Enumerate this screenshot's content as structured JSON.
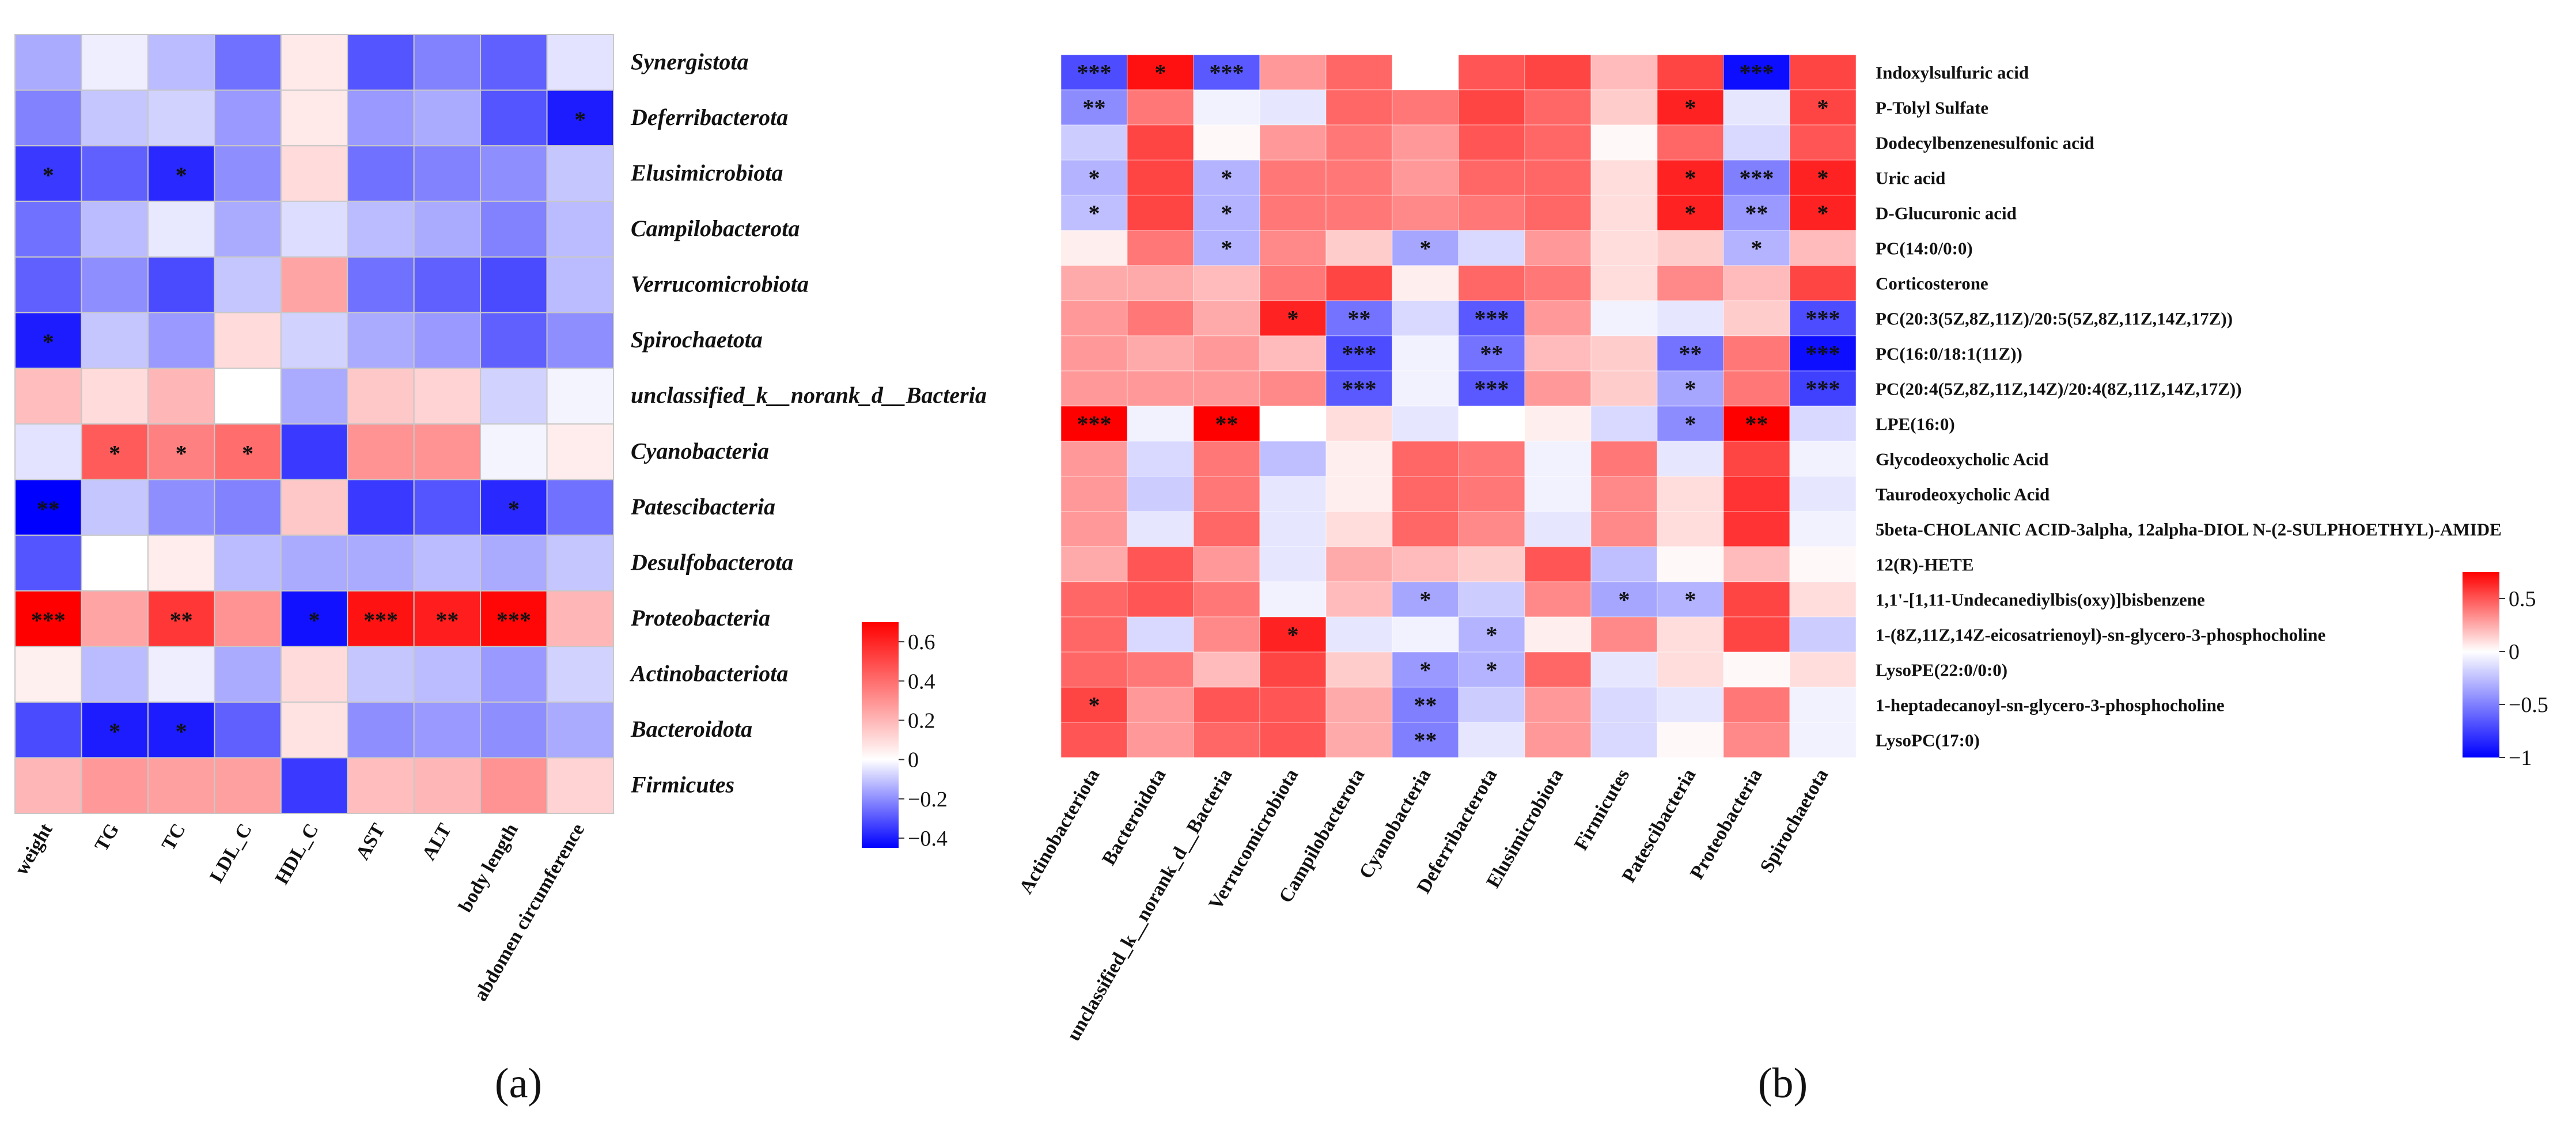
{
  "panel_labels": [
    "(a)",
    "(b)"
  ],
  "chart_data": [
    {
      "type": "heatmap",
      "panel": "a",
      "rows": [
        "Synergistota",
        "Deferribacterota",
        "Elusimicrobiota",
        "Campilobacterota",
        "Verrucomicrobiota",
        "Spirochaetota",
        "unclassified_k__norank_d__Bacteria",
        "Cyanobacteria",
        "Patescibacteria",
        "Desulfobacterota",
        "Proteobacteria",
        "Actinobacteriota",
        "Bacteroidota",
        "Firmicutes"
      ],
      "columns": [
        "weight",
        "TG",
        "TC",
        "LDL_C",
        "HDL_C",
        "AST",
        "ALT",
        "body length",
        "abdomen circumference"
      ],
      "values": [
        [
          -0.15,
          -0.03,
          -0.12,
          -0.25,
          0.06,
          -0.3,
          -0.22,
          -0.28,
          -0.05
        ],
        [
          -0.22,
          -0.1,
          -0.08,
          -0.18,
          0.06,
          -0.18,
          -0.15,
          -0.3,
          -0.4
        ],
        [
          -0.35,
          -0.28,
          -0.38,
          -0.2,
          0.1,
          -0.25,
          -0.22,
          -0.2,
          -0.1
        ],
        [
          -0.25,
          -0.12,
          -0.04,
          -0.15,
          -0.06,
          -0.12,
          -0.15,
          -0.22,
          -0.12
        ],
        [
          -0.28,
          -0.2,
          -0.32,
          -0.1,
          0.25,
          -0.25,
          -0.28,
          -0.32,
          -0.12
        ],
        [
          -0.4,
          -0.1,
          -0.18,
          0.1,
          -0.08,
          -0.15,
          -0.18,
          -0.28,
          -0.2
        ],
        [
          0.18,
          0.1,
          0.2,
          0.0,
          -0.15,
          0.15,
          0.12,
          -0.08,
          -0.02
        ],
        [
          -0.05,
          0.45,
          0.35,
          0.4,
          -0.35,
          0.3,
          0.3,
          -0.02,
          0.05
        ],
        [
          -0.45,
          -0.1,
          -0.2,
          -0.22,
          0.15,
          -0.35,
          -0.3,
          -0.38,
          -0.25
        ],
        [
          -0.3,
          0.0,
          0.05,
          -0.12,
          -0.15,
          -0.15,
          -0.12,
          -0.15,
          -0.1
        ],
        [
          0.7,
          0.25,
          0.55,
          0.3,
          -0.42,
          0.65,
          0.62,
          0.68,
          0.2
        ],
        [
          0.04,
          -0.12,
          -0.03,
          -0.15,
          0.1,
          -0.1,
          -0.12,
          -0.18,
          -0.08
        ],
        [
          -0.32,
          -0.4,
          -0.4,
          -0.28,
          0.08,
          -0.2,
          -0.18,
          -0.2,
          -0.15
        ],
        [
          0.2,
          0.28,
          0.26,
          0.26,
          -0.35,
          0.18,
          0.2,
          0.3,
          0.12
        ]
      ],
      "significance": [
        [
          "",
          "",
          "",
          "",
          "",
          "",
          "",
          "",
          ""
        ],
        [
          "",
          "",
          "",
          "",
          "",
          "",
          "",
          "",
          "*"
        ],
        [
          "*",
          "",
          "*",
          "",
          "",
          "",
          "",
          "",
          ""
        ],
        [
          "",
          "",
          "",
          "",
          "",
          "",
          "",
          "",
          ""
        ],
        [
          "",
          "",
          "",
          "",
          "",
          "",
          "",
          "",
          ""
        ],
        [
          "*",
          "",
          "",
          "",
          "",
          "",
          "",
          "",
          ""
        ],
        [
          "",
          "",
          "",
          "",
          "",
          "",
          "",
          "",
          ""
        ],
        [
          "",
          "*",
          "*",
          "*",
          "",
          "",
          "",
          "",
          ""
        ],
        [
          "**",
          "",
          "",
          "",
          "",
          "",
          "",
          "*",
          ""
        ],
        [
          "",
          "",
          "",
          "",
          "",
          "",
          "",
          "",
          ""
        ],
        [
          "***",
          "",
          "**",
          "",
          "*",
          "***",
          "**",
          "***",
          ""
        ],
        [
          "",
          "",
          "",
          "",
          "",
          "",
          "",
          "",
          ""
        ],
        [
          "",
          "*",
          "*",
          "",
          "",
          "",
          "",
          "",
          ""
        ],
        [
          "",
          "",
          "",
          "",
          "",
          "",
          "",
          "",
          ""
        ]
      ],
      "colorbar": {
        "range": [
          -0.45,
          0.7
        ],
        "ticks": [
          0.6,
          0.4,
          0.2,
          0,
          -0.2,
          -0.4
        ],
        "tick_labels": [
          "0.6",
          "0.4",
          "0.2",
          "0",
          "−0.2",
          "−0.4"
        ]
      },
      "colors": {
        "low": "#0000ff",
        "mid": "#ffffff",
        "high": "#ff0000",
        "grid": "#c8c8c8"
      }
    },
    {
      "type": "heatmap",
      "panel": "b",
      "rows": [
        "Indoxylsulfuric acid",
        "P-Tolyl Sulfate",
        "Dodecylbenzenesulfonic acid",
        "Uric acid",
        "D-Glucuronic acid",
        "PC(14:0/0:0)",
        "Corticosterone",
        "PC(20:3(5Z,8Z,11Z)/20:5(5Z,8Z,11Z,14Z,17Z))",
        "PC(16:0/18:1(11Z))",
        "PC(20:4(5Z,8Z,11Z,14Z)/20:4(8Z,11Z,14Z,17Z))",
        "LPE(16:0)",
        "Glycodeoxycholic Acid",
        "Taurodeoxycholic Acid",
        "5beta-CHOLANIC ACID-3alpha, 12alpha-DIOL N-(2-SULPHOETHYL)-AMIDE",
        "12(R)-HETE",
        "1,1'-[1,11-Undecanediylbis(oxy)]bisbenzene",
        "1-(8Z,11Z,14Z-eicosatrienoyl)-sn-glycero-3-phosphocholine",
        "LysoPE(22:0/0:0)",
        "1-heptadecanoyl-sn-glycero-3-phosphocholine",
        "LysoPC(17:0)"
      ],
      "columns": [
        "Actinobacteriota",
        "Bacteroidota",
        "unclassified_k__norank_d__Bacteria",
        "Verrucomicrobiota",
        "Campilobacterota",
        "Cyanobacteria",
        "Deferribacterota",
        "Elusimicrobiota",
        "Firmicutes",
        "Patescibacteria",
        "Proteobacteria",
        "Spirochaetota"
      ],
      "values": [
        [
          -0.7,
          0.7,
          -0.65,
          0.3,
          0.45,
          0.0,
          0.5,
          0.55,
          0.2,
          0.55,
          -0.95,
          0.55
        ],
        [
          -0.45,
          0.4,
          -0.05,
          -0.1,
          0.45,
          0.4,
          0.55,
          0.45,
          0.15,
          0.65,
          -0.1,
          0.55
        ],
        [
          -0.2,
          0.55,
          0.02,
          0.3,
          0.4,
          0.3,
          0.5,
          0.45,
          0.02,
          0.45,
          -0.15,
          0.5
        ],
        [
          -0.3,
          0.55,
          -0.3,
          0.4,
          0.4,
          0.3,
          0.45,
          0.45,
          0.1,
          0.65,
          -0.5,
          0.65
        ],
        [
          -0.25,
          0.55,
          -0.3,
          0.4,
          0.4,
          0.35,
          0.4,
          0.45,
          0.1,
          0.65,
          -0.4,
          0.65
        ],
        [
          0.05,
          0.4,
          -0.3,
          0.35,
          0.15,
          -0.35,
          -0.15,
          0.3,
          0.1,
          0.15,
          -0.3,
          0.2
        ],
        [
          0.25,
          0.25,
          0.2,
          0.4,
          0.55,
          0.05,
          0.45,
          0.4,
          0.1,
          0.35,
          0.2,
          0.55
        ],
        [
          0.3,
          0.4,
          0.25,
          0.65,
          -0.55,
          -0.15,
          -0.65,
          0.3,
          -0.05,
          -0.1,
          0.15,
          -0.7
        ],
        [
          0.3,
          0.25,
          0.3,
          0.2,
          -0.7,
          -0.05,
          -0.55,
          0.2,
          0.15,
          -0.55,
          0.4,
          -0.95
        ],
        [
          0.3,
          0.3,
          0.3,
          0.35,
          -0.65,
          -0.05,
          -0.65,
          0.3,
          0.15,
          -0.35,
          0.4,
          -0.75
        ],
        [
          0.85,
          -0.05,
          0.8,
          0.0,
          0.1,
          -0.1,
          0.0,
          0.05,
          -0.15,
          -0.45,
          0.8,
          -0.15
        ],
        [
          0.3,
          -0.15,
          0.4,
          -0.25,
          0.05,
          0.45,
          0.4,
          -0.05,
          0.4,
          -0.1,
          0.55,
          -0.05
        ],
        [
          0.3,
          -0.2,
          0.4,
          -0.1,
          0.05,
          0.45,
          0.4,
          -0.05,
          0.35,
          0.1,
          0.6,
          -0.1
        ],
        [
          0.3,
          -0.1,
          0.45,
          -0.1,
          0.1,
          0.45,
          0.35,
          -0.1,
          0.35,
          0.1,
          0.6,
          -0.05
        ],
        [
          0.25,
          0.5,
          0.3,
          -0.1,
          0.25,
          0.2,
          0.15,
          0.5,
          -0.25,
          0.02,
          0.2,
          0.02
        ],
        [
          0.45,
          0.5,
          0.4,
          -0.05,
          0.2,
          -0.35,
          -0.2,
          0.35,
          -0.35,
          -0.3,
          0.55,
          0.1
        ],
        [
          0.45,
          -0.15,
          0.35,
          0.65,
          -0.1,
          -0.05,
          -0.3,
          0.05,
          0.35,
          0.1,
          0.55,
          -0.2
        ],
        [
          0.45,
          0.4,
          0.2,
          0.55,
          0.15,
          -0.4,
          -0.3,
          0.45,
          -0.1,
          0.1,
          0.02,
          0.1
        ],
        [
          0.55,
          0.3,
          0.5,
          0.5,
          0.25,
          -0.5,
          -0.2,
          0.3,
          -0.15,
          -0.1,
          0.4,
          -0.05
        ],
        [
          0.5,
          0.3,
          0.45,
          0.5,
          0.25,
          -0.5,
          -0.1,
          0.3,
          -0.15,
          0.02,
          0.35,
          -0.05
        ]
      ],
      "significance": [
        [
          "***",
          "*",
          "***",
          "",
          "",
          "",
          "",
          "",
          "",
          "",
          "***",
          ""
        ],
        [
          "**",
          "",
          "",
          "",
          "",
          "",
          "",
          "",
          "",
          "*",
          "",
          "*"
        ],
        [
          "",
          "",
          "",
          "",
          "",
          "",
          "",
          "",
          "",
          "",
          "",
          ""
        ],
        [
          "*",
          "",
          "*",
          "",
          "",
          "",
          "",
          "",
          "",
          "*",
          "***",
          "*"
        ],
        [
          "*",
          "",
          "*",
          "",
          "",
          "",
          "",
          "",
          "",
          "*",
          "**",
          "*"
        ],
        [
          "",
          "",
          "*",
          "",
          "",
          "*",
          "",
          "",
          "",
          "",
          "*",
          ""
        ],
        [
          "",
          "",
          "",
          "",
          "",
          "",
          "",
          "",
          "",
          "",
          "",
          ""
        ],
        [
          "",
          "",
          "",
          "*",
          "**",
          "",
          "***",
          "",
          "",
          "",
          "",
          "***"
        ],
        [
          "",
          "",
          "",
          "",
          "***",
          "",
          "**",
          "",
          "",
          "**",
          "",
          "***"
        ],
        [
          "",
          "",
          "",
          "",
          "***",
          "",
          "***",
          "",
          "",
          "*",
          "",
          "***"
        ],
        [
          "***",
          "",
          "**",
          "",
          "",
          "",
          "",
          "",
          "",
          "*",
          "**",
          ""
        ],
        [
          "",
          "",
          "",
          "",
          "",
          "",
          "",
          "",
          "",
          "",
          "",
          ""
        ],
        [
          "",
          "",
          "",
          "",
          "",
          "",
          "",
          "",
          "",
          "",
          "",
          ""
        ],
        [
          "",
          "",
          "",
          "",
          "",
          "",
          "",
          "",
          "",
          "",
          "",
          ""
        ],
        [
          "",
          "",
          "",
          "",
          "",
          "",
          "",
          "",
          "",
          "",
          "",
          ""
        ],
        [
          "",
          "",
          "",
          "",
          "",
          "*",
          "",
          "",
          "*",
          "*",
          "",
          ""
        ],
        [
          "",
          "",
          "",
          "*",
          "",
          "",
          "*",
          "",
          "",
          "",
          "",
          ""
        ],
        [
          "",
          "",
          "",
          "",
          "",
          "*",
          "*",
          "",
          "",
          "",
          "",
          ""
        ],
        [
          "*",
          "",
          "",
          "",
          "",
          "**",
          "",
          "",
          "",
          "",
          "",
          ""
        ],
        [
          "",
          "",
          "",
          "",
          "",
          "**",
          "",
          "",
          "",
          "",
          "",
          ""
        ]
      ],
      "colorbar": {
        "range": [
          -1,
          0.75
        ],
        "ticks": [
          0.5,
          0,
          -0.5,
          -1
        ],
        "tick_labels": [
          "0.5",
          "0",
          "−0.5",
          "−1"
        ]
      },
      "colors": {
        "low": "#0000ff",
        "mid": "#ffffff",
        "high": "#ff0000",
        "grid": "#ffffff"
      }
    }
  ]
}
